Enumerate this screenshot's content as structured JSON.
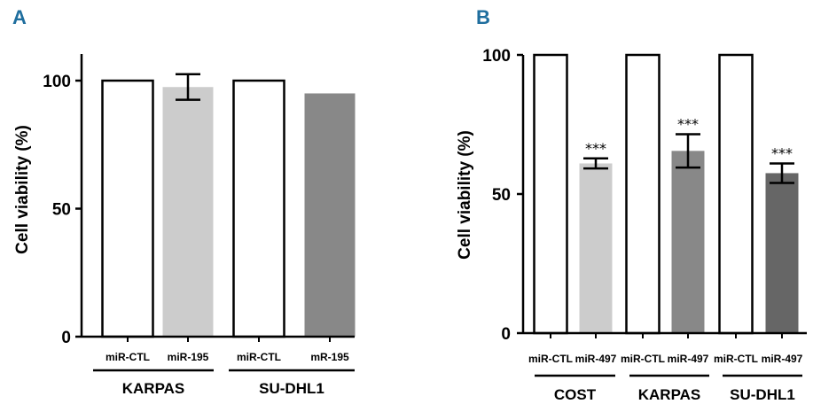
{
  "chart_data": [
    {
      "panel_label": "A",
      "type": "bar",
      "ylabel": "Cell viability (%)",
      "ylim": [
        0,
        100
      ],
      "yticks": [
        0,
        50,
        100
      ],
      "categories": [
        "miR-CTL",
        "miR-195",
        "miR-CTL",
        "mR-195"
      ],
      "values": [
        100,
        97.5,
        100,
        95
      ],
      "error": [
        null,
        5,
        null,
        null
      ],
      "colors": [
        "#ffffff",
        "#cccccc",
        "#ffffff",
        "#888888"
      ],
      "significance": [
        "",
        "",
        "",
        ""
      ],
      "groups": [
        {
          "label": "KARPAS",
          "from": 0,
          "to": 1
        },
        {
          "label": "SU-DHL1",
          "from": 2,
          "to": 3
        }
      ]
    },
    {
      "panel_label": "B",
      "type": "bar",
      "ylabel": "Cell viability (%)",
      "ylim": [
        0,
        100
      ],
      "yticks": [
        0,
        50,
        100
      ],
      "categories": [
        "miR-CTL",
        "miR-497",
        "miR-CTL",
        "miR-497",
        "miR-CTL",
        "miR-497"
      ],
      "values": [
        100,
        61,
        100,
        65.5,
        100,
        57.5
      ],
      "error": [
        null,
        1.8,
        null,
        6,
        null,
        3.5
      ],
      "colors": [
        "#ffffff",
        "#cccccc",
        "#ffffff",
        "#888888",
        "#ffffff",
        "#666666"
      ],
      "significance": [
        "",
        "***",
        "",
        "***",
        "",
        "***"
      ],
      "groups": [
        {
          "label": "COST",
          "from": 0,
          "to": 1
        },
        {
          "label": "KARPAS",
          "from": 2,
          "to": 3
        },
        {
          "label": "SU-DHL1",
          "from": 4,
          "to": 5
        }
      ]
    }
  ]
}
